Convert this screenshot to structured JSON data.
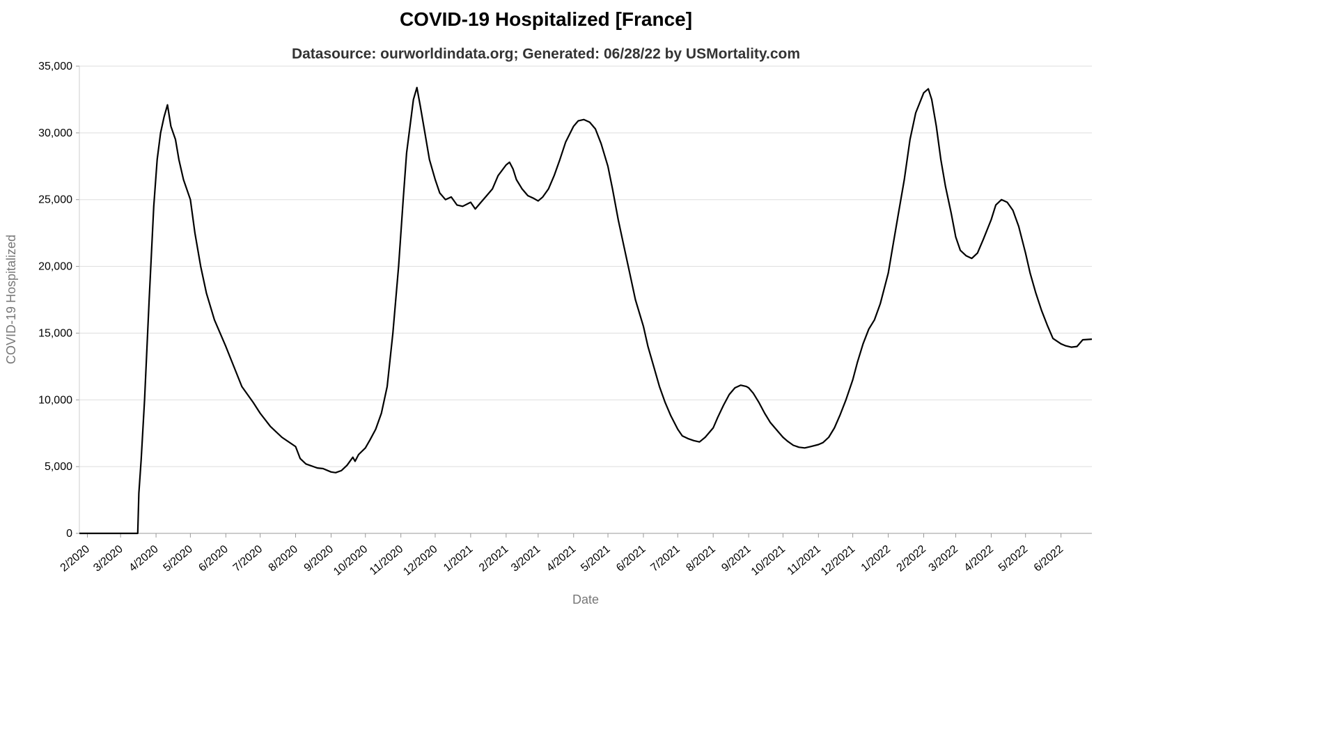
{
  "chart_data": {
    "type": "line",
    "title": "COVID-19 Hospitalized [France]",
    "subtitle": "Datasource: ourworldindata.org; Generated: 06/28/22 by USMortality.com",
    "xlabel": "Date",
    "ylabel": "COVID-19 Hospitalized",
    "xlim": [
      "2020-01-25",
      "2022-06-28"
    ],
    "ylim": [
      0,
      35000
    ],
    "grid": "horizontal",
    "legend": "none",
    "line_color": "#000000",
    "grid_color": "#dddddd",
    "x_tick_labels": [
      "2/2020",
      "3/2020",
      "4/2020",
      "5/2020",
      "6/2020",
      "7/2020",
      "8/2020",
      "9/2020",
      "10/2020",
      "11/2020",
      "12/2020",
      "1/2021",
      "2/2021",
      "3/2021",
      "4/2021",
      "5/2021",
      "6/2021",
      "7/2021",
      "8/2021",
      "9/2021",
      "10/2021",
      "11/2021",
      "12/2021",
      "1/2022",
      "2/2022",
      "3/2022",
      "4/2022",
      "5/2022",
      "6/2022"
    ],
    "x_tick_dates": [
      "2020-02-01",
      "2020-03-01",
      "2020-04-01",
      "2020-05-01",
      "2020-06-01",
      "2020-07-01",
      "2020-08-01",
      "2020-09-01",
      "2020-10-01",
      "2020-11-01",
      "2020-12-01",
      "2021-01-01",
      "2021-02-01",
      "2021-03-01",
      "2021-04-01",
      "2021-05-01",
      "2021-06-01",
      "2021-07-01",
      "2021-08-01",
      "2021-09-01",
      "2021-10-01",
      "2021-11-01",
      "2021-12-01",
      "2022-01-01",
      "2022-02-01",
      "2022-03-01",
      "2022-04-01",
      "2022-05-01",
      "2022-06-01"
    ],
    "y_tick_values": [
      0,
      5000,
      10000,
      15000,
      20000,
      25000,
      30000,
      35000
    ],
    "y_tick_labels": [
      "0",
      "5,000",
      "10,000",
      "15,000",
      "20,000",
      "25,000",
      "30,000",
      "35,000"
    ],
    "series": [
      {
        "points": [
          [
            "2020-01-25",
            0
          ],
          [
            "2020-03-16",
            0
          ],
          [
            "2020-03-17",
            3000
          ],
          [
            "2020-03-19",
            5500
          ],
          [
            "2020-03-22",
            10000
          ],
          [
            "2020-03-26",
            17500
          ],
          [
            "2020-03-30",
            24500
          ],
          [
            "2020-04-02",
            28000
          ],
          [
            "2020-04-05",
            30000
          ],
          [
            "2020-04-08",
            31200
          ],
          [
            "2020-04-11",
            32100
          ],
          [
            "2020-04-14",
            30500
          ],
          [
            "2020-04-18",
            29500
          ],
          [
            "2020-04-21",
            28000
          ],
          [
            "2020-04-25",
            26500
          ],
          [
            "2020-05-01",
            25000
          ],
          [
            "2020-05-05",
            22500
          ],
          [
            "2020-05-10",
            20000
          ],
          [
            "2020-05-15",
            18000
          ],
          [
            "2020-05-22",
            16000
          ],
          [
            "2020-06-01",
            14000
          ],
          [
            "2020-06-08",
            12500
          ],
          [
            "2020-06-15",
            11000
          ],
          [
            "2020-06-25",
            9800
          ],
          [
            "2020-07-01",
            9000
          ],
          [
            "2020-07-10",
            8000
          ],
          [
            "2020-07-20",
            7200
          ],
          [
            "2020-08-01",
            6500
          ],
          [
            "2020-08-05",
            5600
          ],
          [
            "2020-08-10",
            5200
          ],
          [
            "2020-08-20",
            4900
          ],
          [
            "2020-08-25",
            4850
          ],
          [
            "2020-09-01",
            4600
          ],
          [
            "2020-09-05",
            4550
          ],
          [
            "2020-09-10",
            4700
          ],
          [
            "2020-09-15",
            5100
          ],
          [
            "2020-09-20",
            5700
          ],
          [
            "2020-09-22",
            5400
          ],
          [
            "2020-09-25",
            5900
          ],
          [
            "2020-10-01",
            6400
          ],
          [
            "2020-10-05",
            7000
          ],
          [
            "2020-10-10",
            7800
          ],
          [
            "2020-10-15",
            9000
          ],
          [
            "2020-10-20",
            11000
          ],
          [
            "2020-10-25",
            15000
          ],
          [
            "2020-10-30",
            20000
          ],
          [
            "2020-11-03",
            25000
          ],
          [
            "2020-11-06",
            28500
          ],
          [
            "2020-11-09",
            30500
          ],
          [
            "2020-11-12",
            32500
          ],
          [
            "2020-11-15",
            33400
          ],
          [
            "2020-11-18",
            32000
          ],
          [
            "2020-11-22",
            30000
          ],
          [
            "2020-11-26",
            28000
          ],
          [
            "2020-12-01",
            26500
          ],
          [
            "2020-12-05",
            25500
          ],
          [
            "2020-12-10",
            25000
          ],
          [
            "2020-12-15",
            25200
          ],
          [
            "2020-12-20",
            24600
          ],
          [
            "2020-12-25",
            24500
          ],
          [
            "2021-01-01",
            24800
          ],
          [
            "2021-01-05",
            24300
          ],
          [
            "2021-01-10",
            24800
          ],
          [
            "2021-01-15",
            25300
          ],
          [
            "2021-01-20",
            25800
          ],
          [
            "2021-01-25",
            26800
          ],
          [
            "2021-02-01",
            27600
          ],
          [
            "2021-02-04",
            27800
          ],
          [
            "2021-02-07",
            27300
          ],
          [
            "2021-02-10",
            26500
          ],
          [
            "2021-02-15",
            25800
          ],
          [
            "2021-02-20",
            25300
          ],
          [
            "2021-02-25",
            25100
          ],
          [
            "2021-03-01",
            24900
          ],
          [
            "2021-03-05",
            25200
          ],
          [
            "2021-03-10",
            25800
          ],
          [
            "2021-03-15",
            26800
          ],
          [
            "2021-03-20",
            28000
          ],
          [
            "2021-03-25",
            29300
          ],
          [
            "2021-04-01",
            30500
          ],
          [
            "2021-04-05",
            30900
          ],
          [
            "2021-04-10",
            31000
          ],
          [
            "2021-04-15",
            30800
          ],
          [
            "2021-04-20",
            30300
          ],
          [
            "2021-04-25",
            29200
          ],
          [
            "2021-05-01",
            27500
          ],
          [
            "2021-05-05",
            25800
          ],
          [
            "2021-05-10",
            23500
          ],
          [
            "2021-05-15",
            21500
          ],
          [
            "2021-05-20",
            19500
          ],
          [
            "2021-05-25",
            17500
          ],
          [
            "2021-06-01",
            15500
          ],
          [
            "2021-06-05",
            14000
          ],
          [
            "2021-06-10",
            12500
          ],
          [
            "2021-06-15",
            11000
          ],
          [
            "2021-06-20",
            9800
          ],
          [
            "2021-06-25",
            8800
          ],
          [
            "2021-07-01",
            7800
          ],
          [
            "2021-07-05",
            7300
          ],
          [
            "2021-07-10",
            7100
          ],
          [
            "2021-07-15",
            6950
          ],
          [
            "2021-07-20",
            6850
          ],
          [
            "2021-07-25",
            7200
          ],
          [
            "2021-08-01",
            7900
          ],
          [
            "2021-08-05",
            8700
          ],
          [
            "2021-08-10",
            9600
          ],
          [
            "2021-08-15",
            10400
          ],
          [
            "2021-08-20",
            10900
          ],
          [
            "2021-08-25",
            11100
          ],
          [
            "2021-08-30",
            11000
          ],
          [
            "2021-09-01",
            10900
          ],
          [
            "2021-09-05",
            10500
          ],
          [
            "2021-09-10",
            9800
          ],
          [
            "2021-09-15",
            9000
          ],
          [
            "2021-09-20",
            8300
          ],
          [
            "2021-09-25",
            7800
          ],
          [
            "2021-10-01",
            7200
          ],
          [
            "2021-10-05",
            6900
          ],
          [
            "2021-10-10",
            6600
          ],
          [
            "2021-10-15",
            6450
          ],
          [
            "2021-10-20",
            6400
          ],
          [
            "2021-10-25",
            6500
          ],
          [
            "2021-11-01",
            6650
          ],
          [
            "2021-11-05",
            6800
          ],
          [
            "2021-11-10",
            7200
          ],
          [
            "2021-11-15",
            7900
          ],
          [
            "2021-11-20",
            8900
          ],
          [
            "2021-11-25",
            10000
          ],
          [
            "2021-12-01",
            11500
          ],
          [
            "2021-12-05",
            12800
          ],
          [
            "2021-12-10",
            14200
          ],
          [
            "2021-12-15",
            15300
          ],
          [
            "2021-12-20",
            16000
          ],
          [
            "2021-12-25",
            17200
          ],
          [
            "2022-01-01",
            19500
          ],
          [
            "2022-01-05",
            21500
          ],
          [
            "2022-01-10",
            24000
          ],
          [
            "2022-01-15",
            26500
          ],
          [
            "2022-01-20",
            29500
          ],
          [
            "2022-01-25",
            31500
          ],
          [
            "2022-02-01",
            33000
          ],
          [
            "2022-02-05",
            33300
          ],
          [
            "2022-02-08",
            32500
          ],
          [
            "2022-02-12",
            30500
          ],
          [
            "2022-02-16",
            28000
          ],
          [
            "2022-02-20",
            26000
          ],
          [
            "2022-02-25",
            24000
          ],
          [
            "2022-03-01",
            22200
          ],
          [
            "2022-03-05",
            21200
          ],
          [
            "2022-03-10",
            20800
          ],
          [
            "2022-03-15",
            20600
          ],
          [
            "2022-03-20",
            21000
          ],
          [
            "2022-03-25",
            22000
          ],
          [
            "2022-04-01",
            23500
          ],
          [
            "2022-04-05",
            24600
          ],
          [
            "2022-04-10",
            25000
          ],
          [
            "2022-04-15",
            24800
          ],
          [
            "2022-04-20",
            24200
          ],
          [
            "2022-04-25",
            23000
          ],
          [
            "2022-05-01",
            21000
          ],
          [
            "2022-05-05",
            19500
          ],
          [
            "2022-05-10",
            18000
          ],
          [
            "2022-05-15",
            16700
          ],
          [
            "2022-05-20",
            15600
          ],
          [
            "2022-05-25",
            14600
          ],
          [
            "2022-06-01",
            14200
          ],
          [
            "2022-06-05",
            14050
          ],
          [
            "2022-06-10",
            13950
          ],
          [
            "2022-06-15",
            14000
          ],
          [
            "2022-06-20",
            14500
          ],
          [
            "2022-06-28",
            14550
          ]
        ]
      }
    ]
  }
}
